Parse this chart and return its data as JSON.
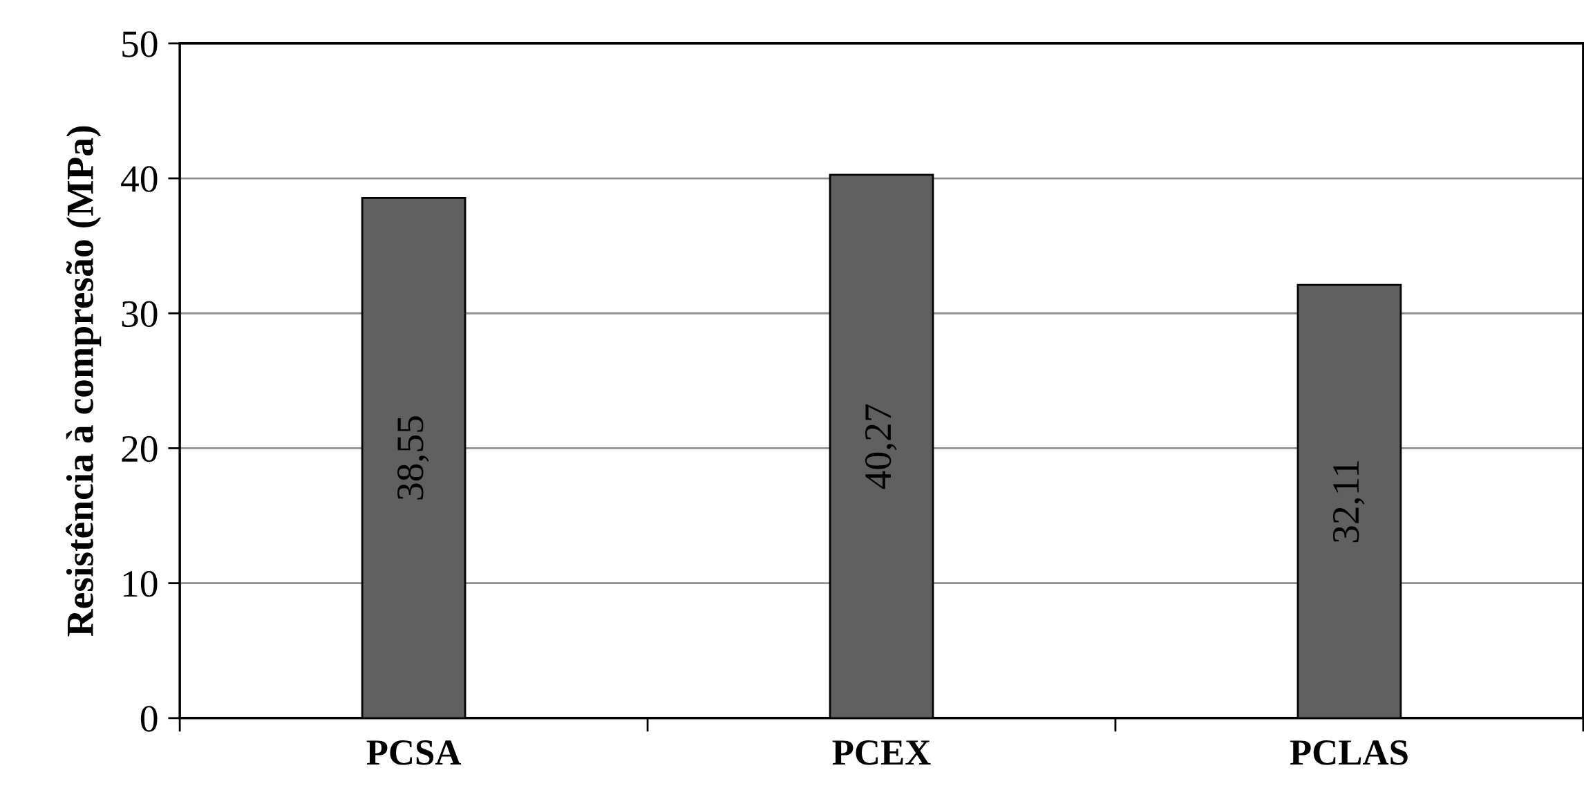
{
  "chart_data": {
    "type": "bar",
    "ylabel": "Resistência à compresão (MPa)",
    "categories": [
      "PCSA",
      "PCEX",
      "PCLAS"
    ],
    "values": [
      38.55,
      40.27,
      32.11
    ],
    "value_labels": [
      "38,55",
      "40,27",
      "32,11"
    ],
    "color": "#606060",
    "ylim": [
      0,
      50
    ],
    "yticks": [
      0,
      10,
      20,
      30,
      40,
      50
    ],
    "grid": "y"
  }
}
